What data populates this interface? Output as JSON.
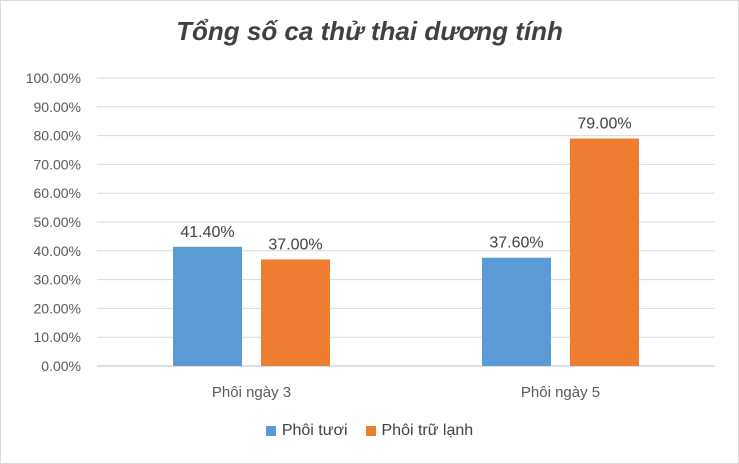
{
  "chart_data": {
    "type": "bar",
    "title": "Tổng số ca thử thai dương tính",
    "categories": [
      "Phôi ngày 3",
      "Phôi ngày 5"
    ],
    "series": [
      {
        "name": "Phôi tươi",
        "values": [
          41.4,
          37.6
        ],
        "labels": [
          "41.40%",
          "37.60%"
        ],
        "color": "#5b9bd5"
      },
      {
        "name": "Phôi trữ lạnh",
        "values": [
          37.0,
          79.0
        ],
        "labels": [
          "37.00%",
          "79.00%"
        ],
        "color": "#ed7d31"
      }
    ],
    "ylim": [
      0,
      100
    ],
    "yticks": [
      "0.00%",
      "10.00%",
      "20.00%",
      "30.00%",
      "40.00%",
      "50.00%",
      "60.00%",
      "70.00%",
      "80.00%",
      "90.00%",
      "100.00%"
    ],
    "grid": true,
    "legend_position": "bottom"
  }
}
